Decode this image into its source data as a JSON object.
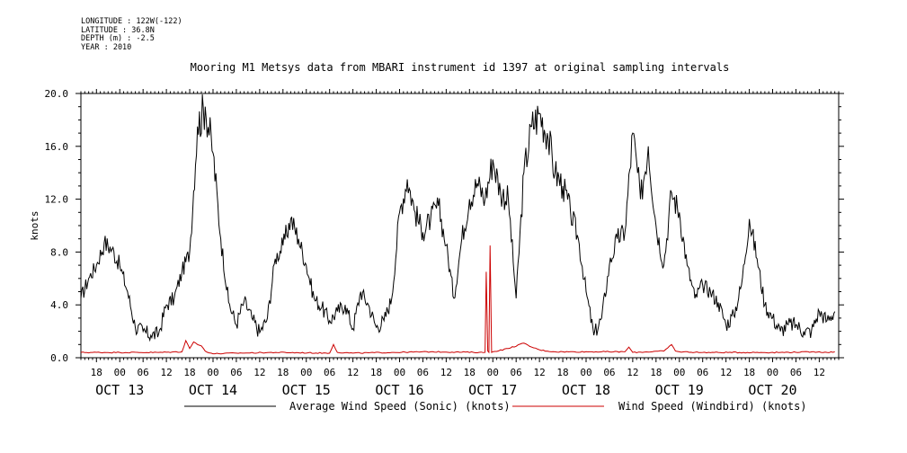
{
  "header": {
    "longitude": "LONGITUDE : 122W(-122)",
    "latitude": "LATITUDE : 36.8N",
    "depth": "DEPTH (m) : -2.5",
    "year": "YEAR : 2010"
  },
  "chart_data": {
    "type": "line",
    "title": "Mooring M1 Metsys data from MBARI instrument id 1397 at original sampling intervals",
    "ylabel": "knots",
    "xlabel": "",
    "ylim": [
      0,
      20
    ],
    "xlim_hours": [
      -10,
      185
    ],
    "y_ticks": [
      "0.0",
      "4.0",
      "8.0",
      "12.0",
      "16.0",
      "20.0"
    ],
    "x_hour_labels": [
      "18",
      "00",
      "06",
      "12",
      "18",
      "00",
      "06",
      "12",
      "18",
      "00",
      "06",
      "12",
      "18",
      "00",
      "06",
      "12",
      "18",
      "00",
      "06",
      "12",
      "18",
      "00",
      "06",
      "12",
      "18",
      "00",
      "06",
      "12",
      "18",
      "00",
      "06",
      "12"
    ],
    "date_labels": [
      "OCT 13",
      "OCT 14",
      "OCT 15",
      "OCT 16",
      "OCT 17",
      "OCT 18",
      "OCT 19",
      "OCT 20"
    ],
    "legend_position": "bottom",
    "series": [
      {
        "name": "Average Wind Speed (Sonic) (knots)",
        "color": "#000000",
        "x_hours": [
          -10,
          -8,
          -6,
          -4,
          -2,
          0,
          2,
          4,
          6,
          8,
          10,
          12,
          14,
          16,
          18,
          20,
          22,
          24,
          26,
          28,
          30,
          32,
          34,
          36,
          38,
          40,
          42,
          44,
          46,
          48,
          50,
          52,
          54,
          56,
          58,
          60,
          62,
          64,
          66,
          68,
          70,
          72,
          74,
          76,
          78,
          80,
          82,
          84,
          86,
          88,
          90,
          92,
          94,
          96,
          98,
          100,
          102,
          104,
          106,
          108,
          110,
          112,
          114,
          116,
          118,
          120,
          122,
          124,
          126,
          128,
          130,
          132,
          134,
          136,
          138,
          140,
          142,
          144,
          146,
          148,
          150,
          152,
          154,
          156,
          158,
          160,
          162,
          164,
          166,
          168,
          170,
          172,
          174,
          176,
          178,
          180,
          182,
          184
        ],
        "values": [
          4.5,
          6.0,
          7.0,
          8.7,
          8.2,
          7.0,
          5.0,
          2.3,
          2.0,
          1.7,
          1.8,
          4.0,
          4.5,
          6.5,
          8.0,
          17.5,
          19.0,
          15.5,
          9.0,
          4.2,
          2.5,
          4.3,
          3.0,
          1.9,
          3.0,
          7.5,
          8.5,
          10.5,
          9.0,
          7.0,
          4.5,
          3.8,
          2.8,
          3.5,
          4.0,
          2.2,
          5.0,
          4.0,
          2.3,
          2.8,
          4.5,
          11.0,
          13.5,
          11.0,
          9.5,
          10.5,
          11.5,
          8.5,
          4.5,
          9.0,
          12.0,
          13.2,
          12.0,
          15.0,
          12.5,
          12.0,
          4.5,
          14.0,
          17.5,
          18.5,
          17.0,
          14.0,
          13.0,
          11.0,
          9.0,
          5.0,
          1.7,
          3.0,
          7.0,
          9.0,
          9.5,
          17.0,
          12.0,
          16.0,
          10.0,
          7.0,
          12.5,
          11.0,
          7.0,
          4.5,
          5.5,
          5.0,
          4.2,
          2.5,
          3.2,
          5.5,
          10.5,
          7.5,
          4.0,
          3.0,
          2.0,
          2.5,
          2.5,
          2.0,
          2.0,
          3.5,
          2.8,
          3.5
        ]
      },
      {
        "name": "Wind Speed (Windbird) (knots)",
        "color": "#cc0000",
        "x_hours": [
          -10,
          0,
          10,
          16,
          17,
          18,
          19,
          20,
          21,
          22,
          24,
          30,
          40,
          54,
          55,
          56,
          60,
          70,
          80,
          94,
          94.3,
          94.7,
          95,
          95.3,
          95.7,
          96,
          100,
          104,
          106,
          108,
          110,
          112,
          130,
          131,
          132,
          140,
          142,
          143,
          144,
          150,
          170,
          180,
          182,
          184
        ],
        "values": [
          0.4,
          0.4,
          0.4,
          0.45,
          1.3,
          0.7,
          1.2,
          1.0,
          0.9,
          0.5,
          0.3,
          0.35,
          0.4,
          0.35,
          1.0,
          0.4,
          0.35,
          0.4,
          0.45,
          0.4,
          6.5,
          0.5,
          0.4,
          8.5,
          0.4,
          0.45,
          0.7,
          1.1,
          0.8,
          0.6,
          0.5,
          0.45,
          0.45,
          0.8,
          0.4,
          0.5,
          1.0,
          0.5,
          0.45,
          0.4,
          0.4,
          0.45,
          0.4,
          0.45
        ]
      }
    ]
  }
}
